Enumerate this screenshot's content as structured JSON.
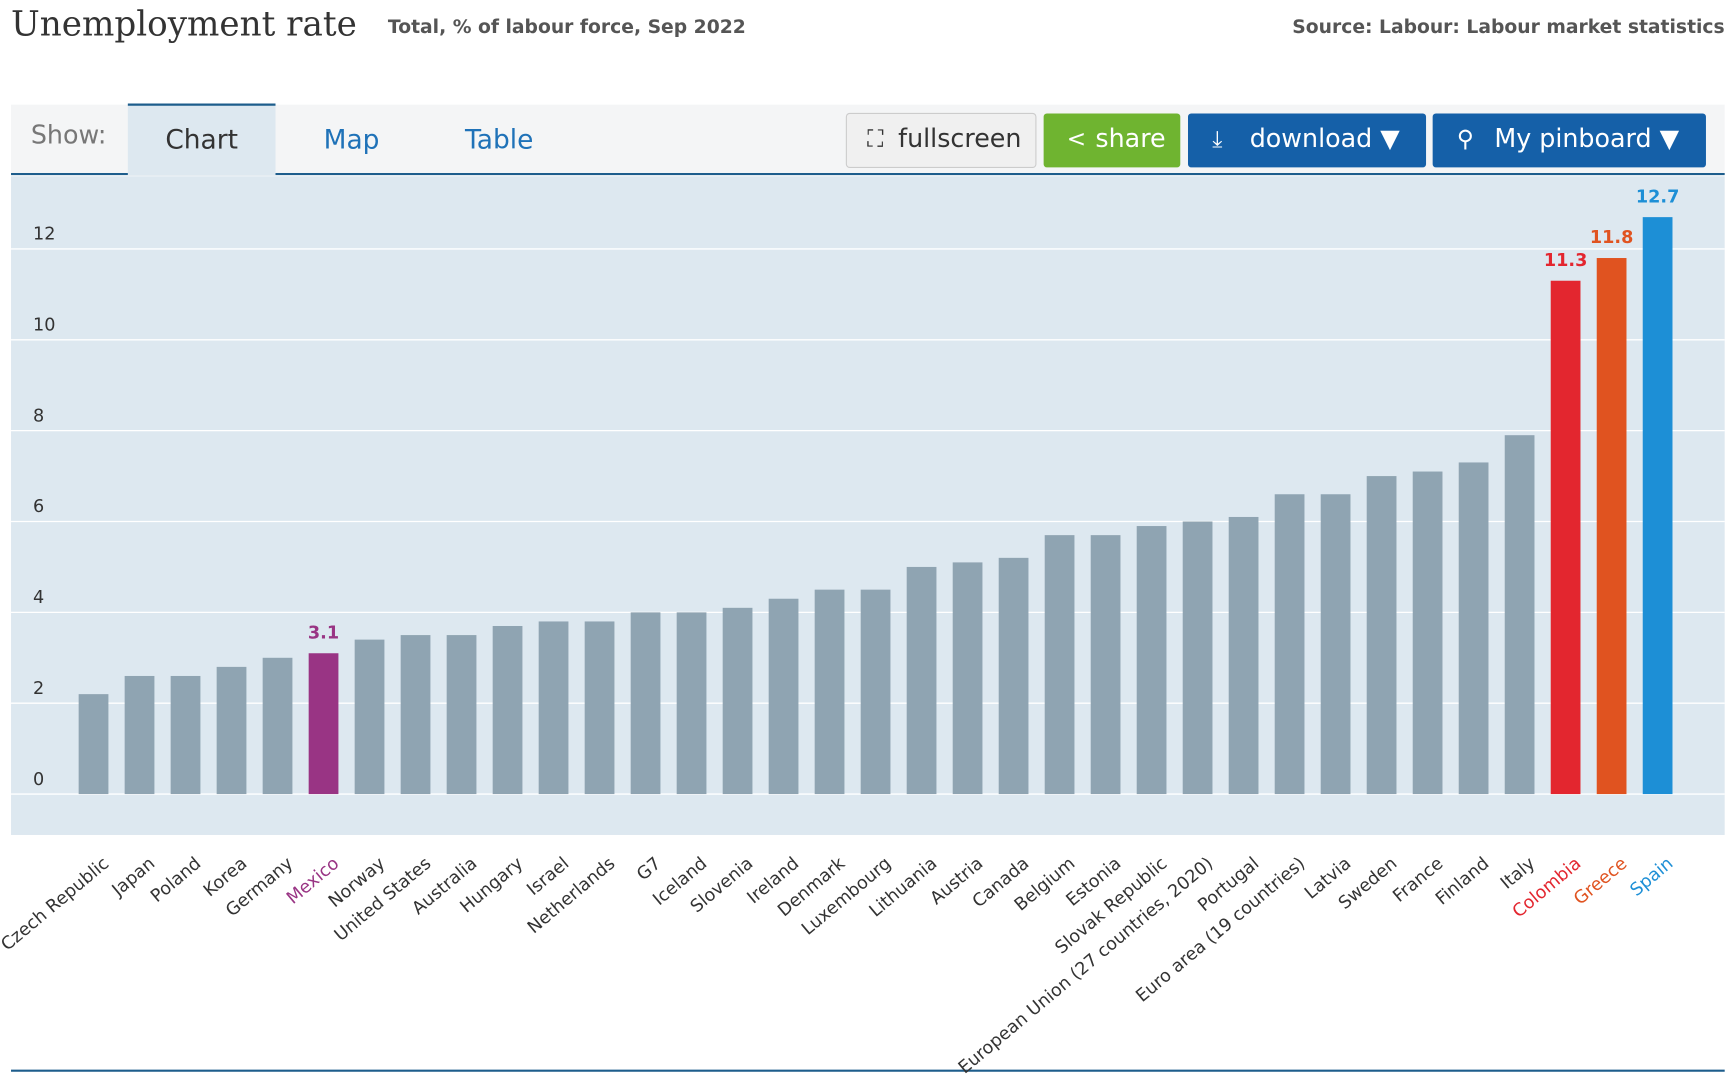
{
  "chart_data": {
    "type": "bar",
    "title": "Unemployment rate",
    "subtitle": "Total, % of labour force, Sep 2022",
    "source": "Source: Labour: Labour market statistics",
    "categories": [
      "Czech Republic",
      "Japan",
      "Poland",
      "Korea",
      "Germany",
      "Mexico",
      "Norway",
      "United States",
      "Australia",
      "Hungary",
      "Israel",
      "Netherlands",
      "G7",
      "Iceland",
      "Slovenia",
      "Ireland",
      "Denmark",
      "Luxembourg",
      "Lithuania",
      "Austria",
      "Canada",
      "Belgium",
      "Estonia",
      "Slovak Republic",
      "European Union (27 countries, 2020)",
      "Portugal",
      "Euro area (19 countries)",
      "Latvia",
      "Sweden",
      "France",
      "Finland",
      "Italy",
      "Colombia",
      "Greece",
      "Spain"
    ],
    "values": [
      2.2,
      2.6,
      2.6,
      2.8,
      3.0,
      3.1,
      3.4,
      3.5,
      3.5,
      3.7,
      3.8,
      3.8,
      4.0,
      4.0,
      4.1,
      4.3,
      4.5,
      4.5,
      5.0,
      5.1,
      5.2,
      5.7,
      5.7,
      5.9,
      6.0,
      6.1,
      6.6,
      6.6,
      7.0,
      7.1,
      7.3,
      7.9,
      11.3,
      11.8,
      12.7
    ],
    "color": "#8fa4b2",
    "colors": [
      "#8fa4b2",
      "#8fa4b2",
      "#8fa4b2",
      "#8fa4b2",
      "#8fa4b2",
      "#993484",
      "#8fa4b2",
      "#8fa4b2",
      "#8fa4b2",
      "#8fa4b2",
      "#8fa4b2",
      "#8fa4b2",
      "#8fa4b2",
      "#8fa4b2",
      "#8fa4b2",
      "#8fa4b2",
      "#8fa4b2",
      "#8fa4b2",
      "#8fa4b2",
      "#8fa4b2",
      "#8fa4b2",
      "#8fa4b2",
      "#8fa4b2",
      "#8fa4b2",
      "#8fa4b2",
      "#8fa4b2",
      "#8fa4b2",
      "#8fa4b2",
      "#8fa4b2",
      "#8fa4b2",
      "#8fa4b2",
      "#8fa4b2",
      "#e3262f",
      "#e05320",
      "#1d8fd6"
    ],
    "ylim": [
      -0.9,
      13.6
    ],
    "yticks": [
      0,
      2,
      4,
      6,
      8,
      10,
      12
    ],
    "grid": true
  },
  "ui": {
    "show": "Show:",
    "tabs": [
      "Chart",
      "Map",
      "Table"
    ],
    "buttons": [
      "fullscreen",
      "share",
      "download ▼",
      "My pinboard ▼"
    ]
  }
}
